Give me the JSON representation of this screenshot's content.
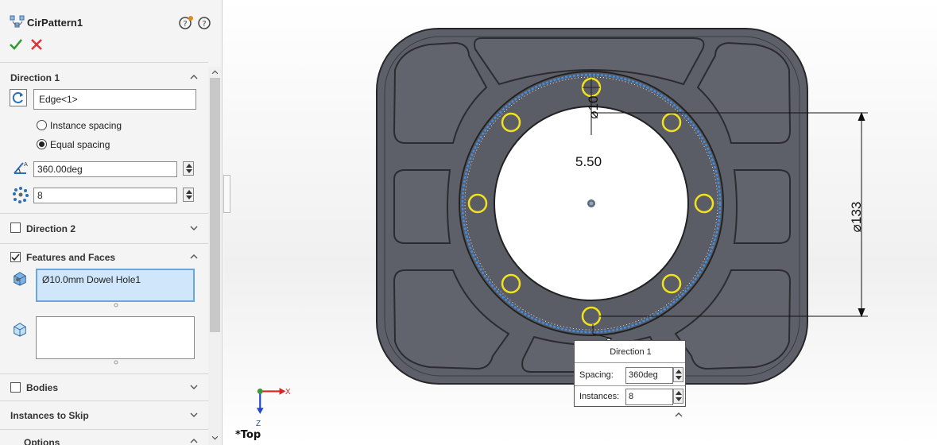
{
  "feature": {
    "title": "CirPattern1",
    "ok_icon": "checkmark-icon",
    "cancel_icon": "close-icon"
  },
  "direction1": {
    "label": "Direction 1",
    "axis_value": "Edge<1>",
    "instance_spacing_label": "Instance spacing",
    "equal_spacing_label": "Equal spacing",
    "selected_spacing": "Equal spacing",
    "angle_value": "360.00deg",
    "instances_value": "8"
  },
  "direction2": {
    "label": "Direction 2",
    "checked": false
  },
  "features_faces": {
    "label": "Features and Faces",
    "checked": true,
    "feature_item": "Ø10.0mm Dowel Hole1"
  },
  "bodies": {
    "label": "Bodies",
    "checked": false
  },
  "instances_to_skip": {
    "label": "Instances to Skip"
  },
  "options": {
    "label": "Options"
  },
  "viewport": {
    "view_name": "*Top",
    "dim_hole": "⌀10",
    "dim_depth": "5.50",
    "dim_diameter": "⌀133",
    "axis_x": "X",
    "axis_z": "Z"
  },
  "callout": {
    "title": "Direction 1",
    "spacing_label": "Spacing:",
    "spacing_value": "360deg",
    "instances_label": "Instances:",
    "instances_value": "8"
  },
  "colors": {
    "part": "#5e6069",
    "part_dark": "#4a4c54",
    "highlight_circle": "#f2e21b",
    "selection_blue": "#3f8fe6",
    "field_selected": "#cfe6fb"
  }
}
